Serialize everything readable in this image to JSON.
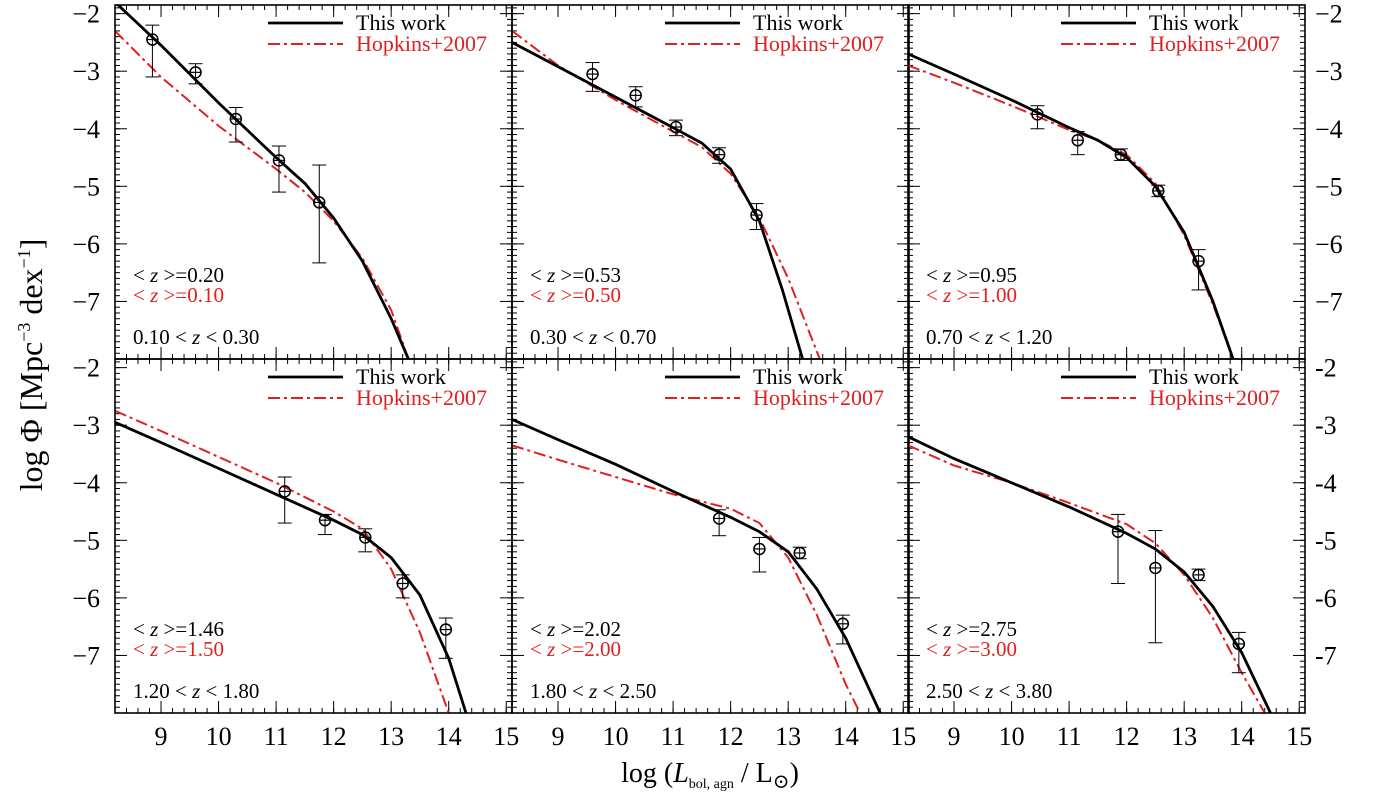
{
  "chart_data": {
    "type": "line",
    "xlabel": "log (L_bol, agn / L_⊙)",
    "xlabel_parts": {
      "pre": "log (",
      "var": "L",
      "sub": "bol, agn",
      "post": " / L",
      "sym": "⊙",
      "close": ")"
    },
    "ylabel": "log Φ [Mpc⁻³ dex⁻¹]",
    "ylabel_parts": {
      "pre": "log Φ [Mpc",
      "sup1": "−3",
      "mid": " dex",
      "sup2": "−1",
      "close": "]"
    },
    "xlim": [
      8.2,
      15.1
    ],
    "ylim": [
      -8.0,
      -1.85
    ],
    "x_ticks": [
      9,
      10,
      11,
      12,
      13,
      14,
      15
    ],
    "x_tick_labels": [
      "9",
      "10",
      "11",
      "12",
      "13",
      "14",
      "15"
    ],
    "y_ticks": [
      -2,
      -3,
      -4,
      -5,
      -6,
      -7
    ],
    "y_tick_labels_left": [
      "−2",
      "−3",
      "−4",
      "−5",
      "−6",
      "−7"
    ],
    "y_tick_labels_right_top": [
      "−2",
      "−3",
      "−4",
      "−5",
      "−6",
      "−7"
    ],
    "y_tick_labels_right_bottom": [
      "-2",
      "-3",
      "-4",
      "-5",
      "-6",
      "-7"
    ],
    "legend": {
      "position": "top-right",
      "entries": [
        {
          "label": "This work",
          "color": "#000000",
          "style": "solid"
        },
        {
          "label": "Hopkins+2007",
          "color": "#e02020",
          "style": "dash-dot"
        }
      ]
    },
    "colors": {
      "this_work": "#000000",
      "hopkins": "#e02020"
    },
    "panels": [
      {
        "range_label": "0.10 < z < 0.30",
        "z_this": "< z >=0.20",
        "z_hopkins": "< z >=0.10",
        "this_work": {
          "x": [
            8.2,
            9.0,
            10.0,
            11.0,
            11.5,
            12.0,
            12.5,
            13.0,
            13.3
          ],
          "y": [
            -1.8,
            -2.55,
            -3.55,
            -4.5,
            -4.95,
            -5.55,
            -6.3,
            -7.3,
            -8.0
          ]
        },
        "hopkins": {
          "x": [
            8.2,
            9.0,
            10.0,
            11.0,
            11.5,
            12.0,
            12.5,
            13.0,
            13.3
          ],
          "y": [
            -2.3,
            -3.1,
            -3.95,
            -4.7,
            -5.1,
            -5.6,
            -6.25,
            -7.15,
            -8.0
          ]
        },
        "points": [
          {
            "x": 8.85,
            "y": -2.45,
            "err_up": 0.25,
            "err_dn": 0.65
          },
          {
            "x": 9.6,
            "y": -3.02,
            "err_up": 0.15,
            "err_dn": 0.2
          },
          {
            "x": 10.3,
            "y": -3.83,
            "err_up": 0.2,
            "err_dn": 0.4
          },
          {
            "x": 11.05,
            "y": -4.55,
            "err_up": 0.25,
            "err_dn": 0.55
          },
          {
            "x": 11.75,
            "y": -5.28,
            "err_up": 0.65,
            "err_dn": 1.05
          }
        ]
      },
      {
        "range_label": "0.30 < z < 0.70",
        "z_this": "< z >=0.53",
        "z_hopkins": "< z >=0.50",
        "this_work": {
          "x": [
            8.2,
            9.0,
            10.0,
            11.0,
            11.5,
            12.0,
            12.5,
            12.9,
            13.25
          ],
          "y": [
            -2.5,
            -2.92,
            -3.45,
            -3.98,
            -4.25,
            -4.7,
            -5.6,
            -6.8,
            -8.0
          ]
        },
        "hopkins": {
          "x": [
            8.2,
            9.0,
            10.0,
            11.0,
            11.5,
            12.0,
            12.5,
            13.0,
            13.55
          ],
          "y": [
            -2.3,
            -2.9,
            -3.5,
            -4.05,
            -4.32,
            -4.78,
            -5.55,
            -6.6,
            -8.0
          ]
        },
        "points": [
          {
            "x": 9.6,
            "y": -3.05,
            "err_up": 0.2,
            "err_dn": 0.3
          },
          {
            "x": 10.35,
            "y": -3.42,
            "err_up": 0.15,
            "err_dn": 0.2
          },
          {
            "x": 11.05,
            "y": -3.97,
            "err_up": 0.12,
            "err_dn": 0.15
          },
          {
            "x": 11.8,
            "y": -4.45,
            "err_up": 0.12,
            "err_dn": 0.15
          },
          {
            "x": 12.45,
            "y": -5.5,
            "err_up": 0.2,
            "err_dn": 0.25
          }
        ]
      },
      {
        "range_label": "0.70 < z < 1.20",
        "z_this": "< z >=0.95",
        "z_hopkins": "< z >=1.00",
        "this_work": {
          "x": [
            8.2,
            9.0,
            10.0,
            11.0,
            11.5,
            12.0,
            12.5,
            13.0,
            13.5,
            13.85
          ],
          "y": [
            -2.7,
            -3.05,
            -3.5,
            -3.98,
            -4.2,
            -4.5,
            -5.0,
            -5.8,
            -7.0,
            -8.0
          ]
        },
        "hopkins": {
          "x": [
            8.2,
            9.0,
            10.0,
            11.0,
            11.5,
            12.0,
            12.5,
            13.0,
            13.5,
            13.85
          ],
          "y": [
            -2.9,
            -3.2,
            -3.6,
            -4.02,
            -4.2,
            -4.45,
            -4.95,
            -5.85,
            -7.05,
            -8.0
          ]
        },
        "points": [
          {
            "x": 10.45,
            "y": -3.75,
            "err_up": 0.15,
            "err_dn": 0.25
          },
          {
            "x": 11.15,
            "y": -4.2,
            "err_up": 0.15,
            "err_dn": 0.25
          },
          {
            "x": 11.9,
            "y": -4.45,
            "err_up": 0.1,
            "err_dn": 0.1
          },
          {
            "x": 12.55,
            "y": -5.08,
            "err_up": 0.1,
            "err_dn": 0.1
          },
          {
            "x": 13.25,
            "y": -6.3,
            "err_up": 0.2,
            "err_dn": 0.5
          }
        ]
      },
      {
        "range_label": "1.20 < z < 1.80",
        "z_this": "< z >=1.46",
        "z_hopkins": "< z >=1.50",
        "this_work": {
          "x": [
            8.2,
            9.0,
            10.0,
            11.0,
            12.0,
            12.5,
            13.0,
            13.5,
            14.0,
            14.3
          ],
          "y": [
            -2.95,
            -3.3,
            -3.75,
            -4.2,
            -4.65,
            -4.9,
            -5.3,
            -5.95,
            -7.05,
            -8.0
          ]
        },
        "hopkins": {
          "x": [
            8.2,
            9.0,
            10.0,
            11.0,
            12.0,
            12.5,
            13.0,
            13.5,
            14.0
          ],
          "y": [
            -2.75,
            -3.1,
            -3.55,
            -4.0,
            -4.5,
            -4.8,
            -5.5,
            -6.6,
            -8.0
          ]
        },
        "points": [
          {
            "x": 11.15,
            "y": -4.15,
            "err_up": 0.25,
            "err_dn": 0.55
          },
          {
            "x": 11.85,
            "y": -4.65,
            "err_up": 0.1,
            "err_dn": 0.25
          },
          {
            "x": 12.55,
            "y": -4.95,
            "err_up": 0.15,
            "err_dn": 0.25
          },
          {
            "x": 13.2,
            "y": -5.75,
            "err_up": 0.15,
            "err_dn": 0.25
          },
          {
            "x": 13.95,
            "y": -6.55,
            "err_up": 0.2,
            "err_dn": 0.5
          }
        ]
      },
      {
        "range_label": "1.80 < z < 2.50",
        "z_this": "< z >=2.02",
        "z_hopkins": "< z >=2.00",
        "this_work": {
          "x": [
            8.2,
            9.0,
            10.0,
            11.0,
            12.0,
            12.5,
            13.0,
            13.5,
            14.0,
            14.6
          ],
          "y": [
            -2.9,
            -3.25,
            -3.68,
            -4.15,
            -4.6,
            -4.85,
            -5.2,
            -5.85,
            -6.7,
            -8.0
          ]
        },
        "hopkins": {
          "x": [
            8.2,
            9.0,
            10.0,
            11.0,
            12.0,
            12.5,
            13.0,
            13.5,
            14.0,
            14.25
          ],
          "y": [
            -3.35,
            -3.6,
            -3.9,
            -4.2,
            -4.45,
            -4.7,
            -5.3,
            -6.3,
            -7.5,
            -8.0
          ]
        },
        "points": [
          {
            "x": 11.8,
            "y": -4.62,
            "err_up": 0.15,
            "err_dn": 0.3
          },
          {
            "x": 12.5,
            "y": -5.15,
            "err_up": 0.2,
            "err_dn": 0.4
          },
          {
            "x": 13.2,
            "y": -5.22,
            "err_up": 0.1,
            "err_dn": 0.1
          },
          {
            "x": 13.95,
            "y": -6.45,
            "err_up": 0.15,
            "err_dn": 0.35
          }
        ]
      },
      {
        "range_label": "2.50 < z < 3.80",
        "z_this": "< z >=2.75",
        "z_hopkins": "< z >=3.00",
        "this_work": {
          "x": [
            8.2,
            9.0,
            10.0,
            11.0,
            12.0,
            12.5,
            13.0,
            13.5,
            14.0,
            14.5
          ],
          "y": [
            -3.2,
            -3.58,
            -4.0,
            -4.42,
            -4.88,
            -5.15,
            -5.55,
            -6.15,
            -6.95,
            -8.0
          ]
        },
        "hopkins": {
          "x": [
            8.2,
            9.0,
            10.0,
            11.0,
            12.0,
            12.5,
            13.0,
            13.5,
            14.0,
            14.4
          ],
          "y": [
            -3.35,
            -3.7,
            -4.0,
            -4.35,
            -4.72,
            -5.05,
            -5.6,
            -6.35,
            -7.3,
            -8.0
          ]
        },
        "points": [
          {
            "x": 11.85,
            "y": -4.85,
            "err_up": 0.3,
            "err_dn": 0.9
          },
          {
            "x": 12.5,
            "y": -5.48,
            "err_up": 0.65,
            "err_dn": 1.3
          },
          {
            "x": 13.25,
            "y": -5.6,
            "err_up": 0.1,
            "err_dn": 0.1
          },
          {
            "x": 13.95,
            "y": -6.8,
            "err_up": 0.2,
            "err_dn": 0.5
          }
        ]
      }
    ]
  }
}
